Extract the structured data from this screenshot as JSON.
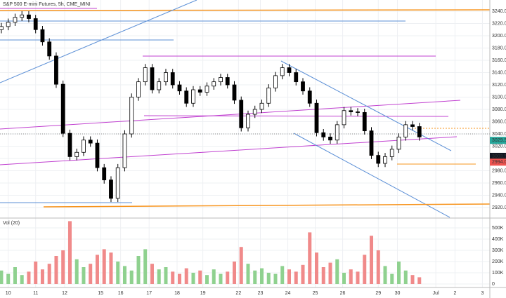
{
  "chart_data": {
    "type": "candlestick",
    "title": "S&P 500 E-mini Futures, 5h, CME_MINI",
    "x": [
      -0.25,
      0,
      0.25,
      0.5,
      0.75,
      1,
      1.25,
      1.5,
      1.75,
      2,
      2.25,
      2.5,
      2.75,
      3,
      3.25,
      3.5,
      3.75,
      4,
      4.25,
      4.5,
      4.75,
      5,
      5.25,
      5.5,
      5.75,
      6,
      6.25,
      6.5,
      6.75,
      7,
      7.25,
      7.5,
      7.75,
      8,
      8.25,
      8.5,
      8.75,
      9,
      9.25,
      9.5,
      9.75,
      10,
      10.25,
      10.5,
      10.75,
      11,
      11.25,
      11.5,
      11.75,
      12,
      12.25,
      12.5,
      12.75,
      13,
      13.25,
      13.5,
      13.75,
      14,
      14.25,
      14.5,
      14.75,
      15
    ],
    "open": [
      3210,
      3215,
      3222,
      3230,
      3234,
      3228,
      3210,
      3190,
      3167,
      3121,
      3041,
      3003,
      3010,
      3030,
      3025,
      2985,
      2965,
      2935,
      2985,
      3040,
      3100,
      3125,
      3148,
      3112,
      3125,
      3140,
      3120,
      3110,
      3090,
      3112,
      3108,
      3118,
      3125,
      3132,
      3120,
      3095,
      3050,
      3072,
      3080,
      3090,
      3115,
      3135,
      3148,
      3140,
      3125,
      3110,
      3090,
      3042,
      3035,
      3030,
      3055,
      3078,
      3076,
      3075,
      3045,
      3005,
      2992,
      3003,
      3015,
      3035,
      3055,
      3052
    ],
    "high": [
      3221,
      3228,
      3236,
      3240,
      3240,
      3234,
      3216,
      3196,
      3173,
      3127,
      3047,
      3016,
      3036,
      3036,
      3031,
      2991,
      2971,
      2991,
      3046,
      3106,
      3131,
      3154,
      3154,
      3131,
      3146,
      3146,
      3126,
      3116,
      3118,
      3118,
      3124,
      3131,
      3138,
      3138,
      3126,
      3101,
      3078,
      3086,
      3096,
      3121,
      3141,
      3154,
      3154,
      3146,
      3131,
      3116,
      3096,
      3048,
      3041,
      3061,
      3084,
      3084,
      3082,
      3081,
      3051,
      3011,
      3009,
      3021,
      3041,
      3061,
      3061,
      3058
    ],
    "low": [
      3204,
      3209,
      3216,
      3224,
      3222,
      3204,
      3184,
      3161,
      3115,
      3035,
      2997,
      2997,
      3004,
      3019,
      2979,
      2959,
      2929,
      2929,
      2979,
      3034,
      3094,
      3119,
      3106,
      3106,
      3119,
      3114,
      3104,
      3084,
      3084,
      3102,
      3102,
      3112,
      3119,
      3114,
      3089,
      3044,
      3044,
      3066,
      3074,
      3084,
      3109,
      3129,
      3134,
      3119,
      3104,
      3084,
      3036,
      3029,
      3024,
      3024,
      3049,
      3070,
      3069,
      3039,
      2999,
      2986,
      2986,
      2997,
      3009,
      3029,
      3046,
      3029
    ],
    "close": [
      3215,
      3222,
      3230,
      3234,
      3228,
      3210,
      3190,
      3167,
      3121,
      3041,
      3003,
      3010,
      3030,
      3025,
      2985,
      2965,
      2935,
      2985,
      3040,
      3100,
      3125,
      3148,
      3112,
      3125,
      3140,
      3120,
      3110,
      3090,
      3112,
      3108,
      3118,
      3125,
      3132,
      3120,
      3095,
      3050,
      3072,
      3080,
      3090,
      3115,
      3135,
      3148,
      3140,
      3125,
      3110,
      3090,
      3042,
      3035,
      3030,
      3055,
      3078,
      3076,
      3075,
      3045,
      3005,
      2992,
      3003,
      3015,
      3035,
      3055,
      3052,
      3035
    ],
    "up_color": "#ffffff",
    "down_color": "#000000",
    "xlim": [
      -0.3,
      17.57
    ],
    "xticks": [
      {
        "value": 0,
        "label": "10"
      },
      {
        "value": 1,
        "label": "11"
      },
      {
        "value": 2.06,
        "label": "12"
      },
      {
        "value": 3.37,
        "label": "15"
      },
      {
        "value": 4.1,
        "label": "16"
      },
      {
        "value": 5.14,
        "label": "17"
      },
      {
        "value": 6.16,
        "label": "18"
      },
      {
        "value": 7.1,
        "label": "19"
      },
      {
        "value": 8.4,
        "label": "22"
      },
      {
        "value": 9.2,
        "label": "23"
      },
      {
        "value": 10.2,
        "label": "24"
      },
      {
        "value": 11.2,
        "label": "25"
      },
      {
        "value": 12.2,
        "label": "26"
      },
      {
        "value": 13.5,
        "label": "29"
      },
      {
        "value": 14.2,
        "label": "30"
      },
      {
        "value": 15.6,
        "label": "Jul"
      },
      {
        "value": 16.3,
        "label": "2"
      },
      {
        "value": 17.3,
        "label": "3"
      }
    ],
    "ylim": [
      2904,
      3258.3
    ],
    "yticks": [
      {
        "value": 2920,
        "label": "2920.00"
      },
      {
        "value": 2940,
        "label": "2940.00"
      },
      {
        "value": 2960,
        "label": "2960.00"
      },
      {
        "value": 2980,
        "label": "2980.00"
      },
      {
        "value": 3000,
        "label": "3000.00"
      },
      {
        "value": 3020,
        "label": "3020.00"
      },
      {
        "value": 3040,
        "label": "3040.00"
      },
      {
        "value": 3060,
        "label": "3060.00"
      },
      {
        "value": 3080,
        "label": "3080.00"
      },
      {
        "value": 3100,
        "label": "3100.00"
      },
      {
        "value": 3120,
        "label": "3120.00"
      },
      {
        "value": 3140,
        "label": "3140.00"
      },
      {
        "value": 3160,
        "label": "3160.00"
      },
      {
        "value": 3180,
        "label": "3180.00"
      },
      {
        "value": 3200,
        "label": "3200.00"
      },
      {
        "value": 3220,
        "label": "3220.00"
      },
      {
        "value": 3240,
        "label": "3240.00"
      }
    ],
    "price_labels": [
      {
        "value": 3029.5,
        "label": "3029.50",
        "color": "#26a69a"
      },
      {
        "value": 3003.5,
        "label": "3003.50",
        "color": "#131722"
      },
      {
        "value": 2994,
        "label": "2994.00",
        "color": "#ef5350"
      }
    ],
    "volume": {
      "title": "Vol (20)",
      "up_color": "#8fd18f",
      "down_color": "#f08a8a",
      "values": [
        120000,
        90000,
        150000,
        80000,
        110000,
        200000,
        130000,
        180000,
        250000,
        300000,
        560000,
        220000,
        150000,
        180000,
        260000,
        310000,
        280000,
        200000,
        160000,
        120000,
        250000,
        310000,
        180000,
        130000,
        150000,
        110000,
        90000,
        140000,
        100000,
        120000,
        80000,
        130000,
        90000,
        110000,
        200000,
        330000,
        180000,
        120000,
        140000,
        100000,
        90000,
        160000,
        130000,
        110000,
        170000,
        460000,
        280000,
        150000,
        190000,
        220000,
        100000,
        130000,
        110000,
        260000,
        430000,
        300000,
        160000,
        90000,
        200000,
        120000,
        80000,
        60000
      ],
      "ylim": [
        0,
        581250
      ],
      "yticks": [
        0,
        {
          "value": 100000,
          "label": "100K"
        },
        {
          "value": 200000,
          "label": "200K"
        },
        {
          "value": 300000,
          "label": "300K"
        },
        {
          "value": 400000,
          "label": "400K"
        },
        {
          "value": 500000,
          "label": "500K"
        }
      ]
    },
    "grid": true
  }
}
